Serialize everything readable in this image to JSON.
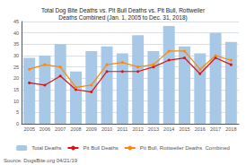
{
  "chart_data": {
    "type": "bar",
    "title": "Total Dog Bite Deaths vs. Pit Bull Deaths vs. Pit Bull, Rottweiler\nDeaths Combined (Jan. 1, 2005 to Dec. 31, 2018)",
    "categories": [
      "2005",
      "2006",
      "2007",
      "2008",
      "2009",
      "2010",
      "2011",
      "2012",
      "2013",
      "2014",
      "2015",
      "2016",
      "2017",
      "2018"
    ],
    "series": [
      {
        "name": "Total Deaths",
        "type": "bar",
        "color": "#a8c8e8",
        "values": [
          29,
          30,
          35,
          23,
          32,
          34,
          31,
          39,
          32,
          43,
          34,
          31,
          40,
          36
        ]
      },
      {
        "name": "Pit Bull Deaths",
        "type": "line",
        "color": "#dd1111",
        "marker": "circle",
        "values": [
          18,
          17,
          21,
          15,
          14,
          23,
          23,
          23,
          25,
          28,
          29,
          22,
          29,
          26
        ]
      },
      {
        "name": "Pit Bull, Rottweiler Deaths  Combined",
        "type": "line",
        "color": "#ff8800",
        "marker": "circle",
        "values": [
          24,
          26,
          25,
          16,
          17,
          26,
          27,
          25,
          26,
          32,
          32,
          24,
          30,
          28
        ]
      }
    ],
    "ylim": [
      0,
      45
    ],
    "yticks": [
      0,
      5,
      10,
      15,
      20,
      25,
      30,
      35,
      40,
      45
    ],
    "grid": true,
    "legend": "bottom",
    "annotations": [
      "Source: DogsBite.org 04/21/19"
    ]
  }
}
